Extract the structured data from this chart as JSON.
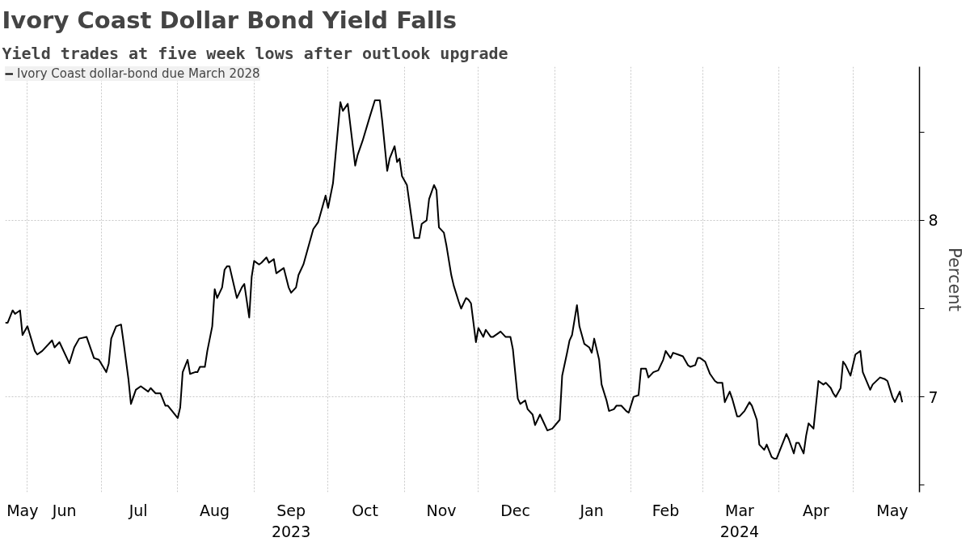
{
  "chart_data": {
    "type": "line",
    "title": "Ivory Coast Dollar Bond Yield Falls",
    "subtitle": "Yield trades at five week lows after outlook upgrade",
    "ylabel": "Percent",
    "x": [
      "2023-05-23",
      "2023-05-24",
      "2023-05-26",
      "2023-05-27",
      "2023-05-29",
      "2023-05-30",
      "2023-06-01",
      "2023-06-04",
      "2023-06-05",
      "2023-06-07",
      "2023-06-11",
      "2023-06-12",
      "2023-06-14",
      "2023-06-18",
      "2023-06-20",
      "2023-06-22",
      "2023-06-25",
      "2023-06-28",
      "2023-06-30",
      "2023-07-03",
      "2023-07-04",
      "2023-07-05",
      "2023-07-07",
      "2023-07-09",
      "2023-07-10",
      "2023-07-12",
      "2023-07-13",
      "2023-07-15",
      "2023-07-17",
      "2023-07-20",
      "2023-07-21",
      "2023-07-23",
      "2023-07-25",
      "2023-07-27",
      "2023-07-28",
      "2023-08-01",
      "2023-08-02",
      "2023-08-03",
      "2023-08-05",
      "2023-08-06",
      "2023-08-08",
      "2023-08-09",
      "2023-08-10",
      "2023-08-12",
      "2023-08-13",
      "2023-08-15",
      "2023-08-16",
      "2023-08-17",
      "2023-08-19",
      "2023-08-20",
      "2023-08-21",
      "2023-08-22",
      "2023-08-25",
      "2023-08-27",
      "2023-08-28",
      "2023-08-30",
      "2023-08-31",
      "2023-09-01",
      "2023-09-03",
      "2023-09-04",
      "2023-09-06",
      "2023-09-07",
      "2023-09-09",
      "2023-09-10",
      "2023-09-13",
      "2023-09-15",
      "2023-09-16",
      "2023-09-18",
      "2023-09-19",
      "2023-09-21",
      "2023-09-25",
      "2023-09-27",
      "2023-09-30",
      "2023-10-01",
      "2023-10-03",
      "2023-10-06",
      "2023-10-07",
      "2023-10-09",
      "2023-10-12",
      "2023-10-13",
      "2023-10-15",
      "2023-10-18",
      "2023-10-20",
      "2023-10-22",
      "2023-10-23",
      "2023-10-25",
      "2023-10-26",
      "2023-10-28",
      "2023-10-29",
      "2023-10-30",
      "2023-10-31",
      "2023-11-02",
      "2023-11-05",
      "2023-11-07",
      "2023-11-08",
      "2023-11-10",
      "2023-11-11",
      "2023-11-13",
      "2023-11-14",
      "2023-11-15",
      "2023-11-17",
      "2023-11-18",
      "2023-11-20",
      "2023-11-21",
      "2023-11-23",
      "2023-11-24",
      "2023-11-26",
      "2023-11-27",
      "2023-11-28",
      "2023-11-30",
      "2023-12-01",
      "2023-12-03",
      "2023-12-04",
      "2023-12-06",
      "2023-12-07",
      "2023-12-09",
      "2023-12-10",
      "2023-12-12",
      "2023-12-14",
      "2023-12-15",
      "2023-12-17",
      "2023-12-18",
      "2023-12-20",
      "2023-12-21",
      "2023-12-23",
      "2023-12-24",
      "2023-12-26",
      "2023-12-27",
      "2023-12-29",
      "2023-12-31",
      "2024-01-03",
      "2024-01-04",
      "2024-01-06",
      "2024-01-07",
      "2024-01-08",
      "2024-01-10",
      "2024-01-11",
      "2024-01-13",
      "2024-01-15",
      "2024-01-16",
      "2024-01-17",
      "2024-01-19",
      "2024-01-20",
      "2024-01-22",
      "2024-01-23",
      "2024-01-25",
      "2024-01-26",
      "2024-01-28",
      "2024-01-30",
      "2024-01-31",
      "2024-02-02",
      "2024-02-04",
      "2024-02-05",
      "2024-02-07",
      "2024-02-08",
      "2024-02-10",
      "2024-02-12",
      "2024-02-14",
      "2024-02-15",
      "2024-02-17",
      "2024-02-18",
      "2024-02-20",
      "2024-02-22",
      "2024-02-24",
      "2024-02-25",
      "2024-02-27",
      "2024-02-28",
      "2024-02-29",
      "2024-03-02",
      "2024-03-04",
      "2024-03-06",
      "2024-03-07",
      "2024-03-09",
      "2024-03-10",
      "2024-03-12",
      "2024-03-13",
      "2024-03-15",
      "2024-03-16",
      "2024-03-18",
      "2024-03-20",
      "2024-03-21",
      "2024-03-23",
      "2024-03-24",
      "2024-03-26",
      "2024-03-27",
      "2024-03-29",
      "2024-03-30",
      "2024-03-31",
      "2024-04-04",
      "2024-04-05",
      "2024-04-07",
      "2024-04-08",
      "2024-04-09",
      "2024-04-11",
      "2024-04-12",
      "2024-04-13",
      "2024-04-15",
      "2024-04-17",
      "2024-04-19",
      "2024-04-20",
      "2024-04-22",
      "2024-04-23",
      "2024-04-24",
      "2024-04-26",
      "2024-04-27",
      "2024-04-28",
      "2024-04-30",
      "2024-05-02",
      "2024-05-04",
      "2024-05-05",
      "2024-05-08",
      "2024-05-09",
      "2024-05-12",
      "2024-05-14",
      "2024-05-15",
      "2024-05-17",
      "2024-05-18",
      "2024-05-20",
      "2024-05-21"
    ],
    "series": [
      {
        "name": "Ivory Coast dollar-bond due March 2028",
        "color": "#000000",
        "values": [
          7.42,
          7.42,
          7.49,
          7.47,
          7.49,
          7.35,
          7.4,
          7.26,
          7.24,
          7.26,
          7.32,
          7.28,
          7.31,
          7.19,
          7.28,
          7.33,
          7.34,
          7.22,
          7.21,
          7.14,
          7.19,
          7.33,
          7.4,
          7.41,
          7.31,
          7.1,
          6.96,
          7.04,
          7.06,
          7.03,
          7.05,
          7.02,
          7.02,
          6.95,
          6.95,
          6.88,
          6.94,
          7.14,
          7.21,
          7.13,
          7.14,
          7.14,
          7.17,
          7.17,
          7.26,
          7.4,
          7.61,
          7.56,
          7.62,
          7.72,
          7.74,
          7.74,
          7.56,
          7.62,
          7.64,
          7.45,
          7.68,
          7.77,
          7.75,
          7.76,
          7.79,
          7.76,
          7.78,
          7.7,
          7.73,
          7.62,
          7.59,
          7.62,
          7.69,
          7.75,
          7.95,
          7.99,
          8.14,
          8.07,
          8.21,
          8.67,
          8.62,
          8.66,
          8.31,
          8.37,
          8.45,
          8.59,
          8.68,
          8.68,
          8.56,
          8.28,
          8.35,
          8.42,
          8.33,
          8.35,
          8.25,
          8.2,
          7.9,
          7.9,
          7.98,
          8.0,
          8.12,
          8.2,
          8.17,
          7.96,
          7.93,
          7.86,
          7.69,
          7.63,
          7.54,
          7.5,
          7.56,
          7.55,
          7.53,
          7.31,
          7.39,
          7.34,
          7.38,
          7.34,
          7.34,
          7.36,
          7.37,
          7.34,
          7.34,
          7.27,
          6.99,
          6.96,
          6.98,
          6.93,
          6.9,
          6.84,
          6.9,
          6.87,
          6.81,
          6.82,
          6.87,
          7.12,
          7.25,
          7.32,
          7.35,
          7.52,
          7.4,
          7.3,
          7.28,
          7.25,
          7.33,
          7.21,
          7.07,
          6.98,
          6.92,
          6.93,
          6.95,
          6.95,
          6.92,
          6.91,
          7.0,
          7.01,
          7.16,
          7.16,
          7.11,
          7.14,
          7.15,
          7.21,
          7.26,
          7.22,
          7.25,
          7.24,
          7.23,
          7.18,
          7.17,
          7.18,
          7.22,
          7.22,
          7.2,
          7.13,
          7.09,
          7.08,
          7.08,
          6.97,
          7.03,
          6.99,
          6.89,
          6.89,
          6.92,
          6.97,
          6.95,
          6.87,
          6.73,
          6.7,
          6.73,
          6.66,
          6.65,
          6.65,
          6.79,
          6.76,
          6.68,
          6.74,
          6.74,
          6.68,
          6.78,
          6.85,
          6.82,
          7.09,
          7.07,
          7.08,
          7.05,
          7.02,
          7.0,
          7.05,
          7.2,
          7.18,
          7.12,
          7.24,
          7.26,
          7.14,
          7.04,
          7.07,
          7.11,
          7.1,
          7.09,
          7.0,
          6.97,
          7.03,
          6.97
        ]
      }
    ],
    "xlim": [
      "2023-05-23",
      "2024-05-28"
    ],
    "xticks": [
      {
        "value": "2023-06-01",
        "label": null
      },
      {
        "value": "2023-07-01",
        "label": null
      },
      {
        "value": "2023-08-01",
        "label": null
      },
      {
        "value": "2023-09-01",
        "label": null
      },
      {
        "value": "2023-10-01",
        "label": null
      },
      {
        "value": "2023-11-01",
        "label": null
      },
      {
        "value": "2023-12-01",
        "label": null
      },
      {
        "value": "2024-01-01",
        "label": null
      },
      {
        "value": "2024-02-01",
        "label": null
      },
      {
        "value": "2024-03-01",
        "label": null
      },
      {
        "value": "2024-04-01",
        "label": null
      },
      {
        "value": "2024-05-01",
        "label": null
      },
      {
        "value": "2023-05-30",
        "label": "May"
      },
      {
        "value": "2023-06-16",
        "label": "Jun"
      },
      {
        "value": "2023-07-16",
        "label": "Jul"
      },
      {
        "value": "2023-08-16",
        "label": "Aug"
      },
      {
        "value": "2023-09-16",
        "label": "Sep\n2023"
      },
      {
        "value": "2023-10-16",
        "label": "Oct"
      },
      {
        "value": "2023-11-16",
        "label": "Nov"
      },
      {
        "value": "2023-12-16",
        "label": "Dec"
      },
      {
        "value": "2024-01-16",
        "label": "Jan"
      },
      {
        "value": "2024-02-15",
        "label": "Feb"
      },
      {
        "value": "2024-03-16",
        "label": "Mar\n2024"
      },
      {
        "value": "2024-04-16",
        "label": "Apr"
      },
      {
        "value": "2024-05-17",
        "label": "May"
      }
    ],
    "ylim": [
      6.46,
      8.87
    ],
    "yticks": [
      {
        "value": 6.5,
        "label": null
      },
      7,
      {
        "value": 7.5,
        "label": null
      },
      8,
      {
        "value": 8.5,
        "label": null
      }
    ],
    "grid": true,
    "legend": "top left",
    "line_style": "solid"
  }
}
